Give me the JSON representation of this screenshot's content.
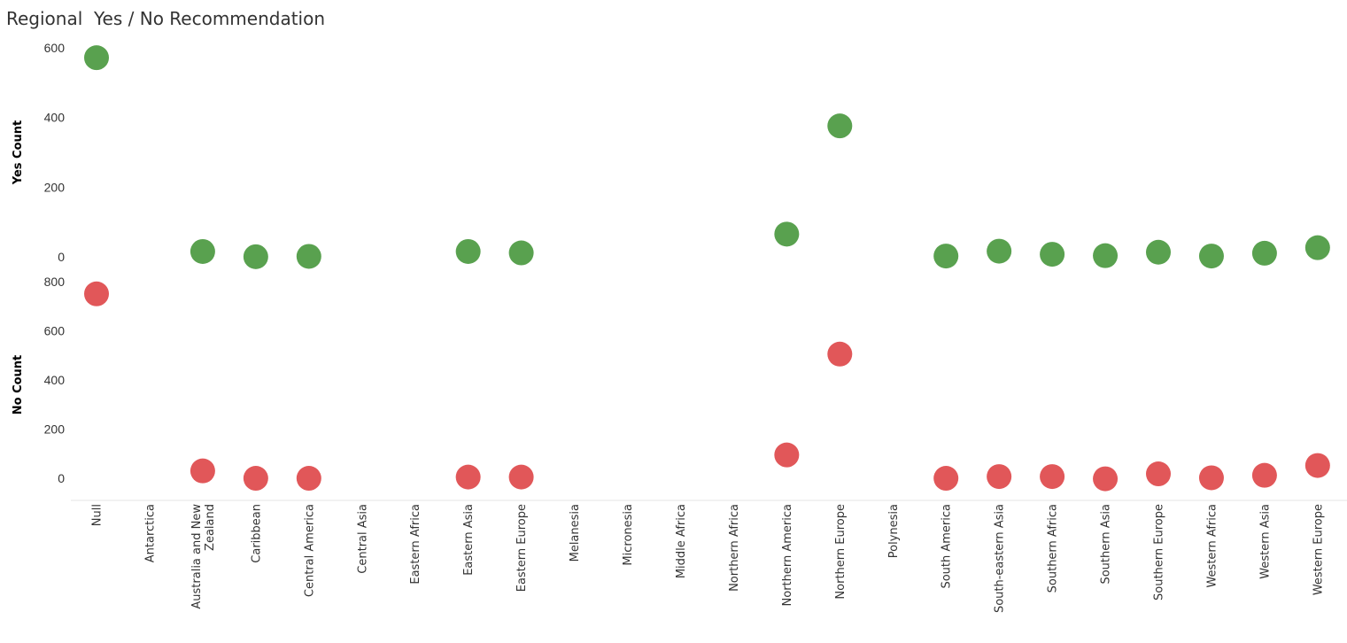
{
  "title": "Regional  Yes / No Recommendation",
  "chart_data": {
    "type": "scatter",
    "title": "Regional  Yes / No Recommendation",
    "categories": [
      "Null",
      "Antarctica",
      "Australia and New Zealand",
      "Caribbean",
      "Central America",
      "Central Asia",
      "Eastern Africa",
      "Eastern Asia",
      "Eastern Europe",
      "Melanesia",
      "Micronesia",
      "Middle Africa",
      "Northern Africa",
      "Northern America",
      "Northern Europe",
      "Polynesia",
      "South America",
      "South-eastern Asia",
      "Southern Africa",
      "Southern Asia",
      "Southern Europe",
      "Western Africa",
      "Western Asia",
      "Western Europe"
    ],
    "category_display": [
      "Null",
      "Antarctica",
      [
        "Australia and New",
        "Zealand"
      ],
      "Caribbean",
      "Central America",
      "Central Asia",
      "Eastern Africa",
      "Eastern Asia",
      "Eastern Europe",
      "Melanesia",
      "Micronesia",
      "Middle Africa",
      "Northern Africa",
      "Northern America",
      "Northern Europe",
      "Polynesia",
      "South America",
      "South-eastern Asia",
      "Southern Africa",
      "Southern Asia",
      "Southern Europe",
      "Western Africa",
      "Western Asia",
      "Western Europe"
    ],
    "panels": [
      {
        "ylabel": "Yes Count",
        "ylim": [
          -36,
          636
        ],
        "yticks": [
          0,
          200,
          400,
          600
        ],
        "color": "#59a14f",
        "values": [
          572,
          null,
          15,
          0,
          1,
          null,
          null,
          15,
          11,
          null,
          null,
          null,
          null,
          65,
          376,
          null,
          2,
          16,
          7,
          3,
          13,
          2,
          10,
          26
        ]
      },
      {
        "ylabel": "No Count",
        "ylim": [
          -90,
          850
        ],
        "yticks": [
          0,
          200,
          400,
          600,
          800
        ],
        "color": "#e15759",
        "values": [
          750,
          null,
          30,
          0,
          0,
          null,
          null,
          5,
          5,
          null,
          null,
          null,
          null,
          95,
          505,
          null,
          0,
          7,
          7,
          -2,
          18,
          2,
          12,
          52
        ]
      }
    ],
    "grid": false,
    "legend": "none"
  }
}
